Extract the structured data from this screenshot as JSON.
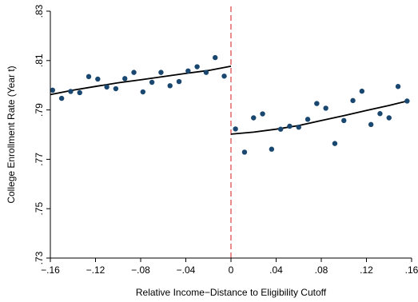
{
  "chart_data": {
    "type": "scatter",
    "xlabel": "Relative Income−Distance to Eligibility Cutoff",
    "ylabel": "College Enrollment Rate (Year t)",
    "xlim": [
      -0.16,
      0.16
    ],
    "ylim": [
      0.73,
      0.83
    ],
    "xticks": [
      -0.16,
      -0.12,
      -0.08,
      -0.04,
      0,
      0.04,
      0.08,
      0.12,
      0.16
    ],
    "xtick_labels": [
      "−.16",
      "−.12",
      "−.08",
      "−.04",
      "0",
      ".04",
      ".08",
      ".12",
      ".16"
    ],
    "yticks": [
      0.73,
      0.75,
      0.77,
      0.79,
      0.81,
      0.83
    ],
    "ytick_labels": [
      ".73",
      ".75",
      ".77",
      ".79",
      ".81",
      ".83"
    ],
    "grid": false,
    "cutoff_x": 0,
    "colors": {
      "points": "#1a476f",
      "fit": "#000000",
      "cutoff": "#e05a5a"
    },
    "points": {
      "x": [
        -0.158,
        -0.15,
        -0.142,
        -0.134,
        -0.126,
        -0.118,
        -0.11,
        -0.102,
        -0.094,
        -0.086,
        -0.078,
        -0.07,
        -0.062,
        -0.054,
        -0.046,
        -0.038,
        -0.03,
        -0.022,
        -0.014,
        -0.006,
        0.004,
        0.012,
        0.02,
        0.028,
        0.036,
        0.044,
        0.052,
        0.06,
        0.068,
        0.076,
        0.084,
        0.092,
        0.1,
        0.108,
        0.116,
        0.124,
        0.132,
        0.14,
        0.148,
        0.156
      ],
      "y": [
        0.798,
        0.7947,
        0.7975,
        0.797,
        0.8035,
        0.8025,
        0.7993,
        0.7986,
        0.8027,
        0.8052,
        0.7973,
        0.8012,
        0.8052,
        0.7998,
        0.8015,
        0.8058,
        0.8075,
        0.8052,
        0.8112,
        0.8037,
        0.7823,
        0.7729,
        0.7868,
        0.7884,
        0.7741,
        0.7822,
        0.7834,
        0.783,
        0.7862,
        0.7926,
        0.7907,
        0.7764,
        0.7857,
        0.7938,
        0.7976,
        0.7841,
        0.7885,
        0.7868,
        0.7995,
        0.7936
      ]
    },
    "fit_left": {
      "x": [
        -0.16,
        -0.14,
        -0.12,
        -0.1,
        -0.08,
        -0.06,
        -0.04,
        -0.02,
        0
      ],
      "y": [
        0.7962,
        0.798,
        0.7995,
        0.801,
        0.8022,
        0.8035,
        0.8048,
        0.806,
        0.8077
      ]
    },
    "fit_right": {
      "x": [
        0,
        0.02,
        0.04,
        0.06,
        0.08,
        0.1,
        0.12,
        0.14,
        0.156
      ],
      "y": [
        0.7802,
        0.781,
        0.7822,
        0.7837,
        0.7857,
        0.7877,
        0.7898,
        0.7918,
        0.7936
      ]
    }
  }
}
